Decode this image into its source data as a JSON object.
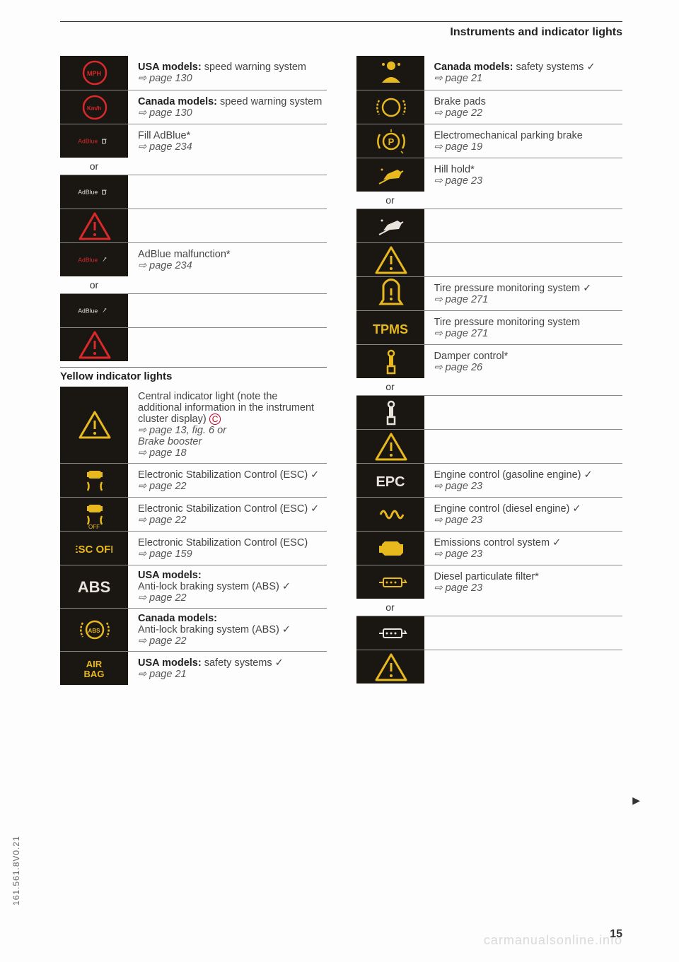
{
  "header": {
    "title": "Instruments and indicator lights"
  },
  "left": {
    "rows": [
      {
        "icon": "mph-circle-red",
        "desc": "<b>USA models:</b> speed warning system",
        "page": "⇨ page 130"
      },
      {
        "icon": "kmh-circle-red",
        "desc": "<b>Canada models:</b> speed warning system",
        "page": "⇨ page 130"
      },
      {
        "icon": "adblue-red-fuel",
        "desc": "Fill AdBlue*",
        "page": "⇨ page 234"
      },
      {
        "or": "or"
      },
      {
        "icon": "adblue-white-fuel",
        "desc": "",
        "page": ""
      },
      {
        "icon": "warning-triangle-red",
        "desc": "",
        "page": ""
      },
      {
        "icon": "adblue-red-wrench",
        "desc": "AdBlue malfunction*",
        "page": "⇨ page 234"
      },
      {
        "or": "or"
      },
      {
        "icon": "adblue-white-wrench",
        "desc": "",
        "page": ""
      },
      {
        "icon": "warning-triangle-red",
        "desc": "",
        "page": ""
      }
    ],
    "section_heading": "Yellow indicator lights",
    "yellow_rows": [
      {
        "icon": "warning-triangle-yellow",
        "desc": "Central indicator light (note the additional information in the instrument cluster display) <span style='color:#c02;border:1px solid #c02;border-radius:50%;padding:0 3px;font-size:12px'>C</span>",
        "page": "⇨ page 13, fig. 6 or<br>Brake booster<br><span class='page-ref'>⇨ page 18</span>"
      },
      {
        "icon": "esc-skid-yellow",
        "desc": "Electronic Stabilization Control (ESC) ✓",
        "page": "⇨ page 22"
      },
      {
        "icon": "esc-skid-off-yellow",
        "desc": "Electronic Stabilization Control (ESC) ✓",
        "page": "⇨ page 22"
      },
      {
        "icon": "esc-off-text",
        "desc": "Electronic Stabilization Control (ESC)",
        "page": "⇨ page 159"
      },
      {
        "icon": "abs-text-white",
        "desc": "<b>USA models:</b><br>Anti-lock braking system (ABS) ✓",
        "page": "⇨ page 22"
      },
      {
        "icon": "abs-circle-yellow",
        "desc": "<b>Canada models:</b><br>Anti-lock braking system (ABS) ✓",
        "page": "⇨ page 22"
      },
      {
        "icon": "airbag-text",
        "desc": "<b>USA models:</b> safety systems ✓",
        "page": "⇨ page 21"
      }
    ]
  },
  "right": {
    "rows": [
      {
        "icon": "safety-seatbelt-yellow",
        "desc": "<b>Canada models:</b> safety systems ✓",
        "page": "⇨ page 21"
      },
      {
        "icon": "brake-pads-yellow",
        "desc": "Brake pads",
        "page": "⇨ page 22"
      },
      {
        "icon": "parking-brake-yellow",
        "desc": "Electromechanical parking brake",
        "page": "⇨ page 19"
      },
      {
        "icon": "hill-hold-yellow",
        "desc": "Hill hold*",
        "page": "⇨ page 23"
      },
      {
        "or": "or"
      },
      {
        "icon": "hill-hold-white",
        "desc": "",
        "page": ""
      },
      {
        "icon": "warning-triangle-yellow",
        "desc": "",
        "page": ""
      },
      {
        "icon": "tire-pressure-yellow",
        "desc": "Tire pressure monitoring system ✓",
        "page": "⇨ page 271"
      },
      {
        "icon": "tpms-text",
        "desc": "Tire pressure monitoring system",
        "page": "⇨ page 271"
      },
      {
        "icon": "damper-yellow",
        "desc": "Damper control*",
        "page": "⇨ page 26"
      },
      {
        "or": "or"
      },
      {
        "icon": "damper-white",
        "desc": "",
        "page": ""
      },
      {
        "icon": "warning-triangle-yellow",
        "desc": "",
        "page": ""
      },
      {
        "icon": "epc-text",
        "desc": "Engine control (gasoline engine) ✓",
        "page": "⇨ page 23"
      },
      {
        "icon": "coil-yellow",
        "desc": "Engine control (diesel engine) ✓",
        "page": "⇨ page 23"
      },
      {
        "icon": "engine-yellow",
        "desc": "Emissions control system ✓",
        "page": "⇨ page 23"
      },
      {
        "icon": "dpf-yellow",
        "desc": "Diesel particulate filter*",
        "page": "⇨ page 23"
      },
      {
        "or": "or"
      },
      {
        "icon": "dpf-white",
        "desc": "",
        "page": ""
      },
      {
        "icon": "warning-triangle-yellow",
        "desc": "",
        "page": ""
      }
    ]
  },
  "footer": {
    "page_num": "15",
    "side_code": "161.561.8V0.21",
    "watermark": "carmanualsonline.info"
  }
}
